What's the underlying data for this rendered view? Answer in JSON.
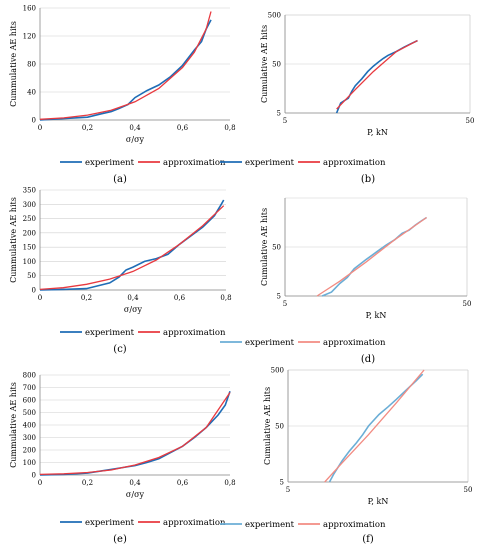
{
  "figure": {
    "panel_labels": [
      "(a)",
      "(b)",
      "(c)",
      "(d)",
      "(e)",
      "(f)"
    ]
  },
  "chart_data": [
    {
      "id": "a",
      "type": "line",
      "xlabel": "σ/σy",
      "ylabel": "Cummulative AE hits",
      "xlim": [
        0,
        0.8
      ],
      "ylim": [
        0,
        160
      ],
      "xticks": [
        "0",
        "0,2",
        "0,4",
        "0,6",
        "0,8"
      ],
      "yticks": [
        "0",
        "40",
        "80",
        "120",
        "160"
      ],
      "grid": "horizontal",
      "legend": "bottom",
      "colors": [
        "#1f6db6",
        "#e8393f"
      ],
      "series": [
        {
          "name": "experiment",
          "x": [
            0,
            0.1,
            0.2,
            0.26,
            0.3,
            0.33,
            0.37,
            0.4,
            0.45,
            0.5,
            0.55,
            0.6,
            0.65,
            0.68,
            0.7,
            0.72
          ],
          "y": [
            0,
            2,
            4,
            9,
            12,
            16,
            22,
            32,
            42,
            50,
            62,
            78,
            100,
            112,
            130,
            143
          ]
        },
        {
          "name": "approximation",
          "x": [
            0,
            0.1,
            0.2,
            0.3,
            0.4,
            0.5,
            0.6,
            0.65,
            0.7,
            0.72
          ],
          "y": [
            1,
            3,
            7,
            14,
            26,
            45,
            75,
            97,
            130,
            155
          ]
        }
      ]
    },
    {
      "id": "b",
      "type": "line",
      "xlabel": "P, kN",
      "ylabel": "Cumulative AE hits",
      "xscale": "log",
      "yscale": "log",
      "xlim": [
        5,
        50
      ],
      "ylim": [
        5,
        500
      ],
      "xticks": [
        "5",
        "50"
      ],
      "yticks": [
        "5",
        "50",
        "500"
      ],
      "grid": "both",
      "legend": "bottom",
      "colors": [
        "#1f6db6",
        "#e8393f"
      ],
      "series": [
        {
          "name": "experiment",
          "x": [
            9.5,
            10,
            11,
            11.5,
            12,
            13,
            14,
            15,
            16,
            17,
            18,
            20,
            22,
            24,
            26
          ],
          "y": [
            5,
            8,
            10,
            14,
            18,
            25,
            35,
            45,
            55,
            65,
            75,
            90,
            110,
            130,
            150
          ]
        },
        {
          "name": "approximation",
          "x": [
            9.5,
            12,
            15,
            20,
            26
          ],
          "y": [
            6,
            15,
            35,
            90,
            150
          ]
        }
      ]
    },
    {
      "id": "c",
      "type": "line",
      "xlabel": "σ/σy",
      "ylabel": "Cummulative AE hits",
      "xlim": [
        0,
        0.8
      ],
      "ylim": [
        0,
        350
      ],
      "xticks": [
        "0",
        "0,2",
        "0,4",
        "0,6",
        "0,8"
      ],
      "yticks": [
        "0",
        "50",
        "100",
        "150",
        "200",
        "250",
        "300",
        "350"
      ],
      "grid": "horizontal",
      "legend": "bottom",
      "colors": [
        "#1f6db6",
        "#e8393f"
      ],
      "series": [
        {
          "name": "experiment",
          "x": [
            0,
            0.1,
            0.2,
            0.3,
            0.34,
            0.37,
            0.4,
            0.45,
            0.5,
            0.55,
            0.6,
            0.65,
            0.7,
            0.75,
            0.78,
            0.79
          ],
          "y": [
            0,
            2,
            5,
            25,
            45,
            70,
            80,
            100,
            110,
            125,
            160,
            190,
            220,
            260,
            300,
            315
          ]
        },
        {
          "name": "approximation",
          "x": [
            0,
            0.1,
            0.2,
            0.3,
            0.4,
            0.5,
            0.6,
            0.7,
            0.79
          ],
          "y": [
            2,
            8,
            20,
            38,
            65,
            105,
            160,
            225,
            295
          ]
        }
      ]
    },
    {
      "id": "d",
      "type": "line",
      "xlabel": "P, kN",
      "ylabel": "Cumulative AE hits",
      "xscale": "log",
      "yscale": "log",
      "xlim": [
        5,
        50
      ],
      "ylim": [
        5,
        500
      ],
      "xticks": [
        "5",
        "50"
      ],
      "yticks": [
        "5",
        "50"
      ],
      "grid": "both",
      "legend": "bottom",
      "colors": [
        "#6baed6",
        "#f28b82"
      ],
      "series": [
        {
          "name": "experiment",
          "x": [
            8,
            9,
            10,
            11,
            12,
            14,
            16,
            18,
            20,
            22,
            24,
            26,
            28,
            30
          ],
          "y": [
            5,
            6,
            9,
            12,
            18,
            28,
            40,
            55,
            70,
            95,
            110,
            140,
            170,
            200
          ]
        },
        {
          "name": "approximation",
          "x": [
            7.5,
            10,
            14,
            20,
            30
          ],
          "y": [
            5,
            10,
            25,
            70,
            200
          ]
        }
      ]
    },
    {
      "id": "e",
      "type": "line",
      "xlabel": "σ/σy",
      "ylabel": "Cummulative AE hits",
      "xlim": [
        0,
        0.8
      ],
      "ylim": [
        0,
        800
      ],
      "xticks": [
        "0",
        "0,2",
        "0,4",
        "0,6",
        "0,8"
      ],
      "yticks": [
        "0",
        "100",
        "200",
        "300",
        "400",
        "500",
        "600",
        "700",
        "800"
      ],
      "grid": "horizontal",
      "legend": "bottom",
      "colors": [
        "#1f6db6",
        "#e8393f"
      ],
      "series": [
        {
          "name": "experiment",
          "x": [
            0,
            0.1,
            0.2,
            0.3,
            0.35,
            0.4,
            0.45,
            0.5,
            0.55,
            0.6,
            0.65,
            0.7,
            0.75,
            0.78,
            0.8
          ],
          "y": [
            0,
            5,
            15,
            45,
            60,
            75,
            100,
            130,
            180,
            230,
            300,
            380,
            480,
            560,
            670
          ]
        },
        {
          "name": "approximation",
          "x": [
            0,
            0.1,
            0.2,
            0.3,
            0.4,
            0.5,
            0.6,
            0.7,
            0.8
          ],
          "y": [
            5,
            10,
            20,
            40,
            80,
            140,
            230,
            380,
            660
          ]
        }
      ]
    },
    {
      "id": "f",
      "type": "line",
      "xlabel": "P, kN",
      "ylabel": "Cumulative AE hits",
      "xscale": "log",
      "yscale": "log",
      "xlim": [
        5,
        50
      ],
      "ylim": [
        5,
        500
      ],
      "xticks": [
        "5",
        "50"
      ],
      "yticks": [
        "5",
        "50",
        "500"
      ],
      "grid": "both",
      "legend": "bottom",
      "colors": [
        "#6baed6",
        "#f28b82"
      ],
      "series": [
        {
          "name": "experiment",
          "x": [
            8.5,
            9,
            10,
            11,
            12,
            13,
            14,
            16,
            18,
            20,
            22,
            24,
            26,
            28
          ],
          "y": [
            5,
            7,
            12,
            18,
            25,
            35,
            50,
            80,
            110,
            150,
            200,
            260,
            330,
            420
          ]
        },
        {
          "name": "approximation",
          "x": [
            8,
            10,
            14,
            20,
            28.5
          ],
          "y": [
            5,
            11,
            35,
            130,
            500
          ]
        }
      ]
    }
  ]
}
